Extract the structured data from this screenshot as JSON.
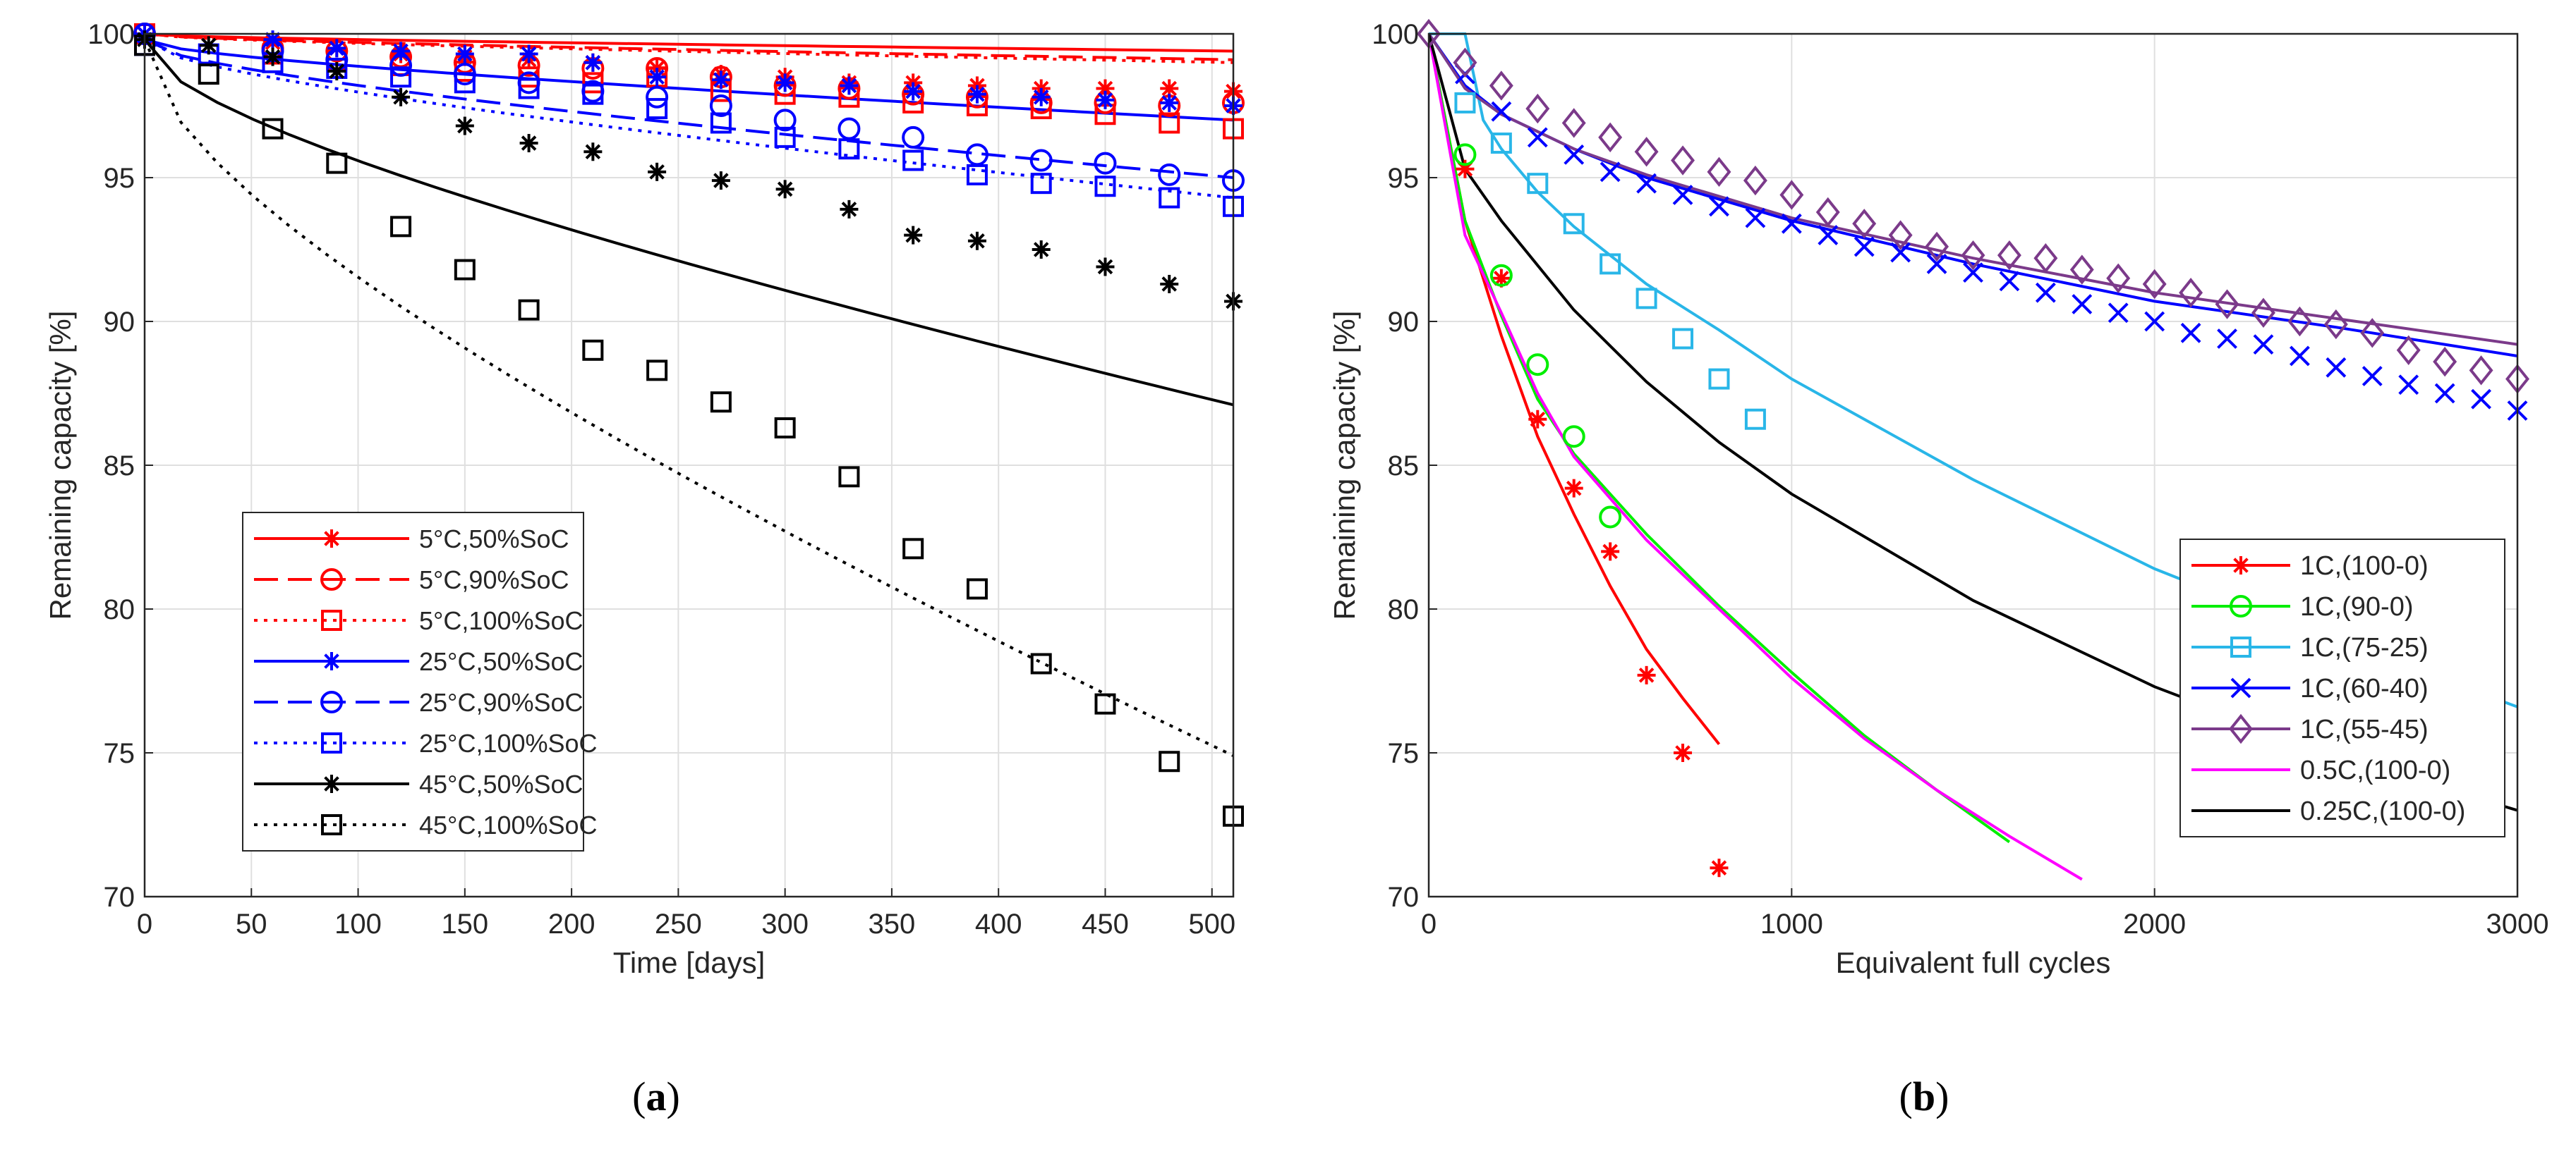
{
  "chart_data": [
    {
      "type": "scatter",
      "panel": "a",
      "caption_label": "a",
      "xlabel": "Time [days]",
      "ylabel": "Remaining capacity [%]",
      "xlim": [
        0,
        510
      ],
      "ylim": [
        70,
        100
      ],
      "xticks": [
        0,
        50,
        100,
        150,
        200,
        250,
        300,
        350,
        400,
        450,
        500
      ],
      "yticks": [
        70,
        75,
        80,
        85,
        90,
        95,
        100
      ],
      "grid": true,
      "legend_position": "bottom-center",
      "series": [
        {
          "name": "5°C,50%SoC",
          "color": "#ff0000",
          "marker": "asterisk",
          "line": "solid",
          "x": [
            0,
            60,
            90,
            120,
            150,
            180,
            210,
            240,
            270,
            300,
            330,
            360,
            390,
            420,
            450,
            480,
            510
          ],
          "y": [
            100,
            99.7,
            99.5,
            99.3,
            99.2,
            99.1,
            99.0,
            98.8,
            98.6,
            98.5,
            98.3,
            98.3,
            98.2,
            98.1,
            98.1,
            98.1,
            98.0
          ],
          "fit_x": [
            0,
            510
          ],
          "fit_y": [
            100,
            99.4
          ]
        },
        {
          "name": "5°C,90%SoC",
          "color": "#ff0000",
          "marker": "circle",
          "line": "dashed",
          "x": [
            0,
            60,
            90,
            120,
            150,
            180,
            210,
            240,
            270,
            300,
            330,
            360,
            390,
            420,
            450,
            480,
            510
          ],
          "y": [
            100,
            99.5,
            99.4,
            99.2,
            99.0,
            98.9,
            98.8,
            98.8,
            98.5,
            98.2,
            98.1,
            97.9,
            97.8,
            97.6,
            97.6,
            97.5,
            97.6
          ],
          "fit_x": [
            0,
            510
          ],
          "fit_y": [
            100,
            99.1
          ]
        },
        {
          "name": "5°C,100%SoC",
          "color": "#ff0000",
          "marker": "square",
          "line": "dotted",
          "x": [
            0,
            60,
            90,
            120,
            150,
            180,
            210,
            240,
            270,
            300,
            330,
            360,
            390,
            420,
            450,
            480,
            510
          ],
          "y": [
            100,
            99.3,
            99.1,
            98.9,
            98.7,
            98.5,
            98.3,
            98.5,
            98.0,
            97.9,
            97.8,
            97.6,
            97.5,
            97.4,
            97.2,
            96.9,
            96.7
          ],
          "fit_x": [
            0,
            510
          ],
          "fit_y": [
            100,
            99.0
          ]
        },
        {
          "name": "25°C,50%SoC",
          "color": "#0000ff",
          "marker": "asterisk",
          "line": "solid",
          "x": [
            0,
            60,
            90,
            120,
            150,
            180,
            210,
            240,
            270,
            300,
            330,
            360,
            390,
            420,
            450,
            480,
            510
          ],
          "y": [
            100,
            99.8,
            99.5,
            99.4,
            99.3,
            99.3,
            99.0,
            98.5,
            98.4,
            98.3,
            98.2,
            98.0,
            97.9,
            97.8,
            97.7,
            97.6,
            97.5
          ],
          "fit_x": [
            0,
            510
          ],
          "fit_y": [
            99.8,
            97.0
          ]
        },
        {
          "name": "25°C,90%SoC",
          "color": "#0000ff",
          "marker": "circle",
          "line": "dashed",
          "x": [
            0,
            60,
            90,
            120,
            150,
            180,
            210,
            240,
            270,
            300,
            330,
            360,
            390,
            420,
            450,
            480,
            510
          ],
          "y": [
            100,
            99.4,
            99.1,
            98.9,
            98.6,
            98.3,
            98.0,
            97.8,
            97.5,
            97.0,
            96.7,
            96.4,
            95.8,
            95.6,
            95.5,
            95.1,
            94.9
          ],
          "fit_x": [
            0,
            510
          ],
          "fit_y": [
            99.8,
            95.0
          ]
        },
        {
          "name": "25°C,100%SoC",
          "color": "#0000ff",
          "marker": "square",
          "line": "dotted",
          "x": [
            0,
            30,
            60,
            90,
            120,
            150,
            180,
            210,
            240,
            270,
            300,
            330,
            360,
            390,
            420,
            450,
            480,
            510
          ],
          "y": [
            99.6,
            99.3,
            99.0,
            98.8,
            98.5,
            98.3,
            98.1,
            97.9,
            97.4,
            96.9,
            96.4,
            96.0,
            95.6,
            95.1,
            94.8,
            94.7,
            94.3,
            94.0
          ],
          "fit_x": [
            0,
            510
          ],
          "fit_y": [
            99.8,
            94.3
          ]
        },
        {
          "name": "45°C,50%SoC",
          "color": "#000000",
          "marker": "asterisk",
          "line": "solid",
          "x": [
            0,
            30,
            60,
            90,
            120,
            150,
            180,
            210,
            240,
            270,
            300,
            330,
            360,
            390,
            420,
            450,
            480,
            510
          ],
          "y": [
            99.8,
            99.6,
            99.2,
            98.7,
            97.8,
            96.8,
            96.2,
            95.9,
            95.2,
            94.9,
            94.6,
            93.9,
            93.0,
            92.8,
            92.5,
            91.9,
            91.3,
            90.7
          ],
          "fit_x": [
            0,
            510
          ],
          "fit_y": [
            99.8,
            87.1
          ]
        },
        {
          "name": "45°C,100%SoC",
          "color": "#000000",
          "marker": "square",
          "line": "dotted",
          "x": [
            0,
            30,
            60,
            90,
            120,
            150,
            180,
            210,
            240,
            270,
            300,
            330,
            360,
            390,
            420,
            450,
            480,
            510
          ],
          "y": [
            99.6,
            98.6,
            96.7,
            95.5,
            93.3,
            91.8,
            90.4,
            89.0,
            88.3,
            87.2,
            86.3,
            84.6,
            82.1,
            80.7,
            78.1,
            76.7,
            74.7,
            72.8
          ],
          "fit_x": [
            0,
            510
          ],
          "fit_y": [
            99.8,
            74.9
          ]
        }
      ]
    },
    {
      "type": "scatter",
      "panel": "b",
      "caption_label": "b",
      "xlabel": "Equivalent full cycles",
      "ylabel": "Remaining capacity [%]",
      "xlim": [
        0,
        3000
      ],
      "ylim": [
        70,
        100
      ],
      "xticks": [
        0,
        1000,
        2000,
        3000
      ],
      "yticks": [
        70,
        75,
        80,
        85,
        90,
        95,
        100
      ],
      "grid": true,
      "legend_position": "right",
      "series": [
        {
          "name": "1C,(100-0)",
          "color": "#ff0000",
          "marker": "asterisk",
          "x": [
            100,
            200,
            300,
            400,
            500,
            600,
            700,
            800
          ],
          "y": [
            95.3,
            91.5,
            86.6,
            84.2,
            82.0,
            77.7,
            75.0,
            71.0
          ],
          "fit_x": [
            0,
            100,
            200,
            300,
            400,
            500,
            600,
            700,
            800
          ],
          "fit_y": [
            100,
            93.5,
            89.5,
            86.0,
            83.3,
            80.8,
            78.6,
            76.9,
            75.3
          ]
        },
        {
          "name": "1C,(90-0)",
          "color": "#00ee00",
          "marker": "circle",
          "x": [
            100,
            200,
            300,
            400,
            500
          ],
          "y": [
            95.8,
            91.6,
            88.5,
            86.0,
            83.2
          ],
          "fit_x": [
            0,
            100,
            200,
            300,
            400,
            600,
            800,
            1000,
            1200,
            1400,
            1600
          ],
          "fit_y": [
            100,
            93.5,
            90.2,
            87.3,
            85.4,
            82.6,
            80.1,
            77.8,
            75.6,
            73.7,
            71.9
          ]
        },
        {
          "name": "1C,(75-25)",
          "color": "#29b6e8",
          "marker": "square",
          "x": [
            100,
            200,
            300,
            400,
            500,
            600,
            700,
            800,
            900
          ],
          "y": [
            97.6,
            96.2,
            94.8,
            93.4,
            92.0,
            90.8,
            89.4,
            88.0,
            86.6
          ],
          "fit_x": [
            0,
            100,
            150,
            200,
            300,
            400,
            600,
            800,
            1000,
            1500,
            2000,
            2500,
            3000
          ],
          "fit_y": [
            100,
            100,
            97.0,
            96.0,
            94.5,
            93.3,
            91.3,
            89.7,
            88.0,
            84.5,
            81.4,
            78.9,
            76.6
          ]
        },
        {
          "name": "1C,(60-40)",
          "color": "#0000ff",
          "marker": "x",
          "x": [
            100,
            200,
            300,
            400,
            500,
            600,
            700,
            800,
            900,
            1000,
            1100,
            1200,
            1300,
            1400,
            1500,
            1600,
            1700,
            1800,
            1900,
            2000,
            2100,
            2200,
            2300,
            2400,
            2500,
            2600,
            2700,
            2800,
            2900,
            3000
          ],
          "y": [
            98.6,
            97.3,
            96.4,
            95.8,
            95.2,
            94.8,
            94.4,
            94.0,
            93.6,
            93.4,
            93.0,
            92.6,
            92.4,
            92.0,
            91.7,
            91.4,
            91.0,
            90.6,
            90.3,
            90.0,
            89.6,
            89.4,
            89.2,
            88.8,
            88.4,
            88.1,
            87.8,
            87.5,
            87.3,
            86.9
          ],
          "fit_x": [
            0,
            100,
            200,
            400,
            600,
            1000,
            1500,
            2000,
            2500,
            3000
          ],
          "fit_y": [
            100,
            98.2,
            97.2,
            96.0,
            95.0,
            93.5,
            92.0,
            90.7,
            89.8,
            88.8
          ]
        },
        {
          "name": "1C,(55-45)",
          "color": "#7b3a8a",
          "marker": "diamond",
          "x": [
            0,
            100,
            200,
            300,
            400,
            500,
            600,
            700,
            800,
            900,
            1000,
            1100,
            1200,
            1300,
            1400,
            1500,
            1600,
            1700,
            1800,
            1900,
            2000,
            2100,
            2200,
            2300,
            2400,
            2500,
            2600,
            2700,
            2800,
            2900,
            3000
          ],
          "y": [
            100,
            99.0,
            98.2,
            97.4,
            96.9,
            96.4,
            95.9,
            95.6,
            95.2,
            94.9,
            94.4,
            93.8,
            93.4,
            93.0,
            92.6,
            92.3,
            92.3,
            92.2,
            91.8,
            91.5,
            91.3,
            91.0,
            90.6,
            90.3,
            90.0,
            89.9,
            89.6,
            89.0,
            88.6,
            88.3,
            88.0
          ],
          "fit_x": [
            0,
            100,
            200,
            400,
            600,
            1000,
            1500,
            2000,
            2500,
            3000
          ],
          "fit_y": [
            100,
            98.1,
            97.2,
            96.0,
            95.1,
            93.6,
            92.2,
            91.0,
            90.1,
            89.2
          ]
        },
        {
          "name": "0.5C,(100-0)",
          "color": "#ff00ff",
          "marker": "none",
          "x": [],
          "y": [],
          "fit_x": [
            0,
            100,
            200,
            300,
            400,
            600,
            800,
            1000,
            1200,
            1400,
            1600,
            1800
          ],
          "fit_y": [
            100,
            93.0,
            90.3,
            87.5,
            85.3,
            82.4,
            80.0,
            77.6,
            75.5,
            73.7,
            72.1,
            70.6
          ]
        },
        {
          "name": "0.25C,(100-0)",
          "color": "#000000",
          "marker": "none",
          "x": [],
          "y": [],
          "fit_x": [
            0,
            100,
            200,
            400,
            600,
            800,
            1000,
            1500,
            2000,
            2500,
            3000
          ],
          "fit_y": [
            100,
            95.3,
            93.5,
            90.4,
            87.9,
            85.8,
            84.0,
            80.3,
            77.3,
            74.9,
            73.0
          ]
        }
      ]
    }
  ]
}
